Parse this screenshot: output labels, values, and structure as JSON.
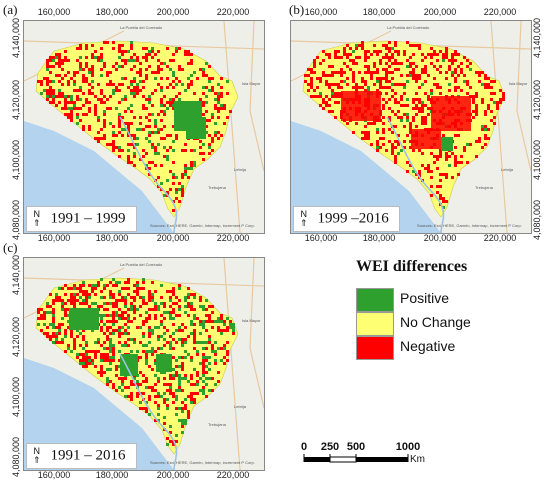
{
  "panels": [
    {
      "letter": "(a)",
      "period": "1991 – 1999",
      "north": "N"
    },
    {
      "letter": "(b)",
      "period": "1999 –2016",
      "north": "N"
    },
    {
      "letter": "(c)",
      "period": "1991 – 2016",
      "north": "N"
    }
  ],
  "axes": {
    "x_ticks": [
      "160,000",
      "180,000",
      "200,000",
      "220,000"
    ],
    "y_ticks": [
      "4,140,000",
      "4,120,000",
      "4,100,000",
      "4,080,000"
    ]
  },
  "basemap_labels": {
    "top": "La Puebla del Corréado",
    "right_top": "Isla Mayor",
    "right_mid": "Lebrija",
    "bottom_right": "Trebujena",
    "attribution": "Sources: Esri, HERE, Garmin, Intermap, increment P Corp."
  },
  "legend": {
    "title": "WEI differences",
    "items": [
      {
        "label": "Positive",
        "color": "#2ea02e"
      },
      {
        "label": "No Change",
        "color": "#ffff73"
      },
      {
        "label": "Negative",
        "color": "#ff0000"
      }
    ]
  },
  "scalebar": {
    "ticks": [
      "0",
      "250",
      "500",
      "1000"
    ],
    "unit": "Km"
  },
  "colors": {
    "sea": "#b3d3ee",
    "land": "#efefe9",
    "no_change": "#ffff73",
    "positive": "#2ea02e",
    "negative": "#ff0000"
  }
}
